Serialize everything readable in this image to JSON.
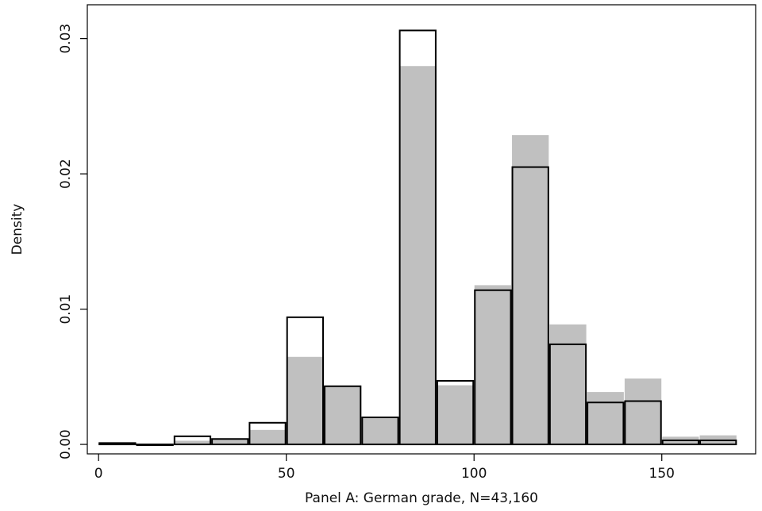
{
  "chart_data": {
    "type": "bar",
    "title": "",
    "xlabel": "Panel A: German grade, N=43,160",
    "ylabel": "Density",
    "xlim": [
      -3,
      175
    ],
    "ylim": [
      -0.0007,
      0.0325
    ],
    "x_ticks": [
      0,
      50,
      100,
      150
    ],
    "x_tick_labels": [
      "0",
      "50",
      "100",
      "150"
    ],
    "y_ticks": [
      0,
      0.01,
      0.02,
      0.03
    ],
    "y_tick_labels": [
      "0.00",
      "0.01",
      "0.02",
      "0.03"
    ],
    "grid": false,
    "legend": "none",
    "bin_edges": [
      0,
      10,
      20,
      30,
      40,
      50,
      60,
      70,
      80,
      90,
      100,
      110,
      120,
      130,
      140,
      150,
      160,
      170
    ],
    "series": [
      {
        "style": "filled",
        "color": "#c0c0c0",
        "values": [
          0.0,
          0.0,
          0.0003,
          0.0004,
          0.0011,
          0.0065,
          0.0043,
          0.002,
          0.028,
          0.0044,
          0.0118,
          0.0229,
          0.0089,
          0.0039,
          0.0049,
          0.0006,
          0.0007
        ]
      },
      {
        "style": "outline",
        "color": "#000000",
        "values": [
          0.0001,
          0.0,
          0.0006,
          0.0004,
          0.0016,
          0.0094,
          0.0043,
          0.002,
          0.0306,
          0.0047,
          0.0114,
          0.0205,
          0.0074,
          0.0031,
          0.0032,
          0.0003,
          0.0003
        ]
      }
    ]
  }
}
